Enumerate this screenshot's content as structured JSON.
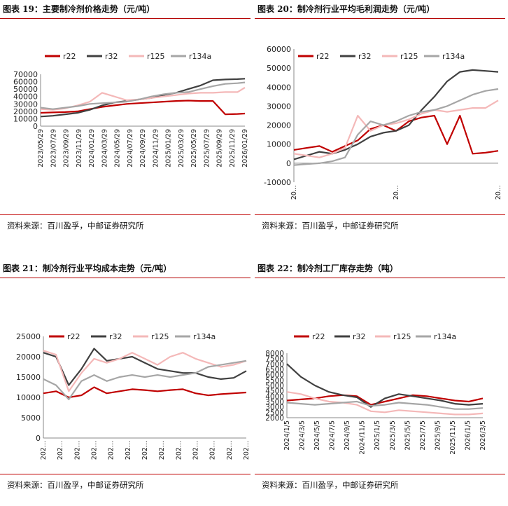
{
  "source": "资料来源：百川盈孚，中邮证券研究所",
  "colors": {
    "r22": "#c00000",
    "r32": "#404040",
    "r125": "#f4b8b8",
    "r134a": "#a6a6a6"
  },
  "chart_data": [
    {
      "title": "图表 19：主要制冷剂价格走势（元/吨）",
      "type": "line",
      "ylim": [
        0,
        70000
      ],
      "yticks": [
        "0",
        "10000",
        "20000",
        "30000",
        "40000",
        "50000",
        "60000",
        "70000"
      ],
      "xticks": [
        "2023/05/29",
        "2023/07/29",
        "2023/09/29",
        "2023/11/29",
        "2024/01/29",
        "2024/03/29",
        "2024/05/29",
        "2024/07/29",
        "2024/09/29",
        "2024/11/29",
        "2025/01/29",
        "2025/03/29",
        "2025/05/29",
        "2025/07/29",
        "2025/09/29",
        "2025/11/29",
        "2026/01/29"
      ],
      "xtick_rotate": true,
      "x": [
        0,
        1,
        2,
        3,
        4,
        5,
        6,
        7,
        8,
        9,
        10,
        11,
        12,
        13,
        14,
        15,
        16,
        16.6
      ],
      "series": [
        {
          "name": "r22",
          "values": [
            18000,
            18500,
            19000,
            20000,
            23000,
            26000,
            28000,
            30000,
            31000,
            32000,
            33000,
            34000,
            34500,
            34000,
            34000,
            16000,
            16500,
            17000
          ]
        },
        {
          "name": "r32",
          "values": [
            13000,
            14000,
            16000,
            18000,
            22000,
            28000,
            32000,
            34000,
            36000,
            38000,
            42000,
            45000,
            50000,
            55000,
            62000,
            63000,
            63500,
            64000
          ]
        },
        {
          "name": "r125",
          "values": [
            23000,
            22000,
            24000,
            28000,
            33000,
            45000,
            40000,
            35000,
            36000,
            38000,
            40000,
            42000,
            44000,
            45000,
            45000,
            46000,
            46000,
            52000
          ]
        },
        {
          "name": "r134a",
          "values": [
            25000,
            23000,
            25000,
            27000,
            30000,
            31000,
            32000,
            33000,
            36000,
            40000,
            43000,
            45000,
            46000,
            50000,
            54000,
            57000,
            58000,
            59000
          ]
        }
      ]
    },
    {
      "title": "图表 20：制冷剂行业平均毛利润走势（元/吨）",
      "type": "line",
      "ylim": [
        -10000,
        60000
      ],
      "yticks": [
        "-10000",
        "0",
        "10000",
        "20000",
        "30000",
        "40000",
        "50000",
        "60000"
      ],
      "xticks": [
        "20...",
        "20...",
        "20..."
      ],
      "xtick_rotate": true,
      "x": [
        0,
        1,
        2,
        3,
        4,
        5,
        6,
        7,
        8,
        9,
        10,
        11,
        12,
        13,
        14,
        15,
        16
      ],
      "series": [
        {
          "name": "r22",
          "values": [
            7000,
            8000,
            9000,
            6000,
            9000,
            12000,
            18000,
            20000,
            17000,
            22000,
            24000,
            25000,
            10000,
            25000,
            5000,
            5500,
            6500
          ]
        },
        {
          "name": "r32",
          "values": [
            2000,
            4000,
            6000,
            5000,
            7000,
            10000,
            14000,
            16000,
            17000,
            20000,
            28000,
            35000,
            43000,
            48000,
            49000,
            48500,
            48000
          ]
        },
        {
          "name": "r125",
          "values": [
            5000,
            4000,
            3000,
            5000,
            8000,
            25000,
            17000,
            20000,
            21000,
            23000,
            26000,
            28000,
            27000,
            28000,
            29000,
            29000,
            33000
          ]
        },
        {
          "name": "r134a",
          "values": [
            -1000,
            -500,
            0,
            1000,
            3000,
            15000,
            22000,
            20000,
            22000,
            25000,
            27000,
            28000,
            30000,
            33000,
            36000,
            38000,
            39000
          ]
        }
      ]
    },
    {
      "title": "图表 21：制冷剂行业平均成本走势（元/吨）",
      "type": "line",
      "ylim": [
        0,
        25000
      ],
      "yticks": [
        "0",
        "5000",
        "10000",
        "15000",
        "20000",
        "25000"
      ],
      "xticks": [
        "202...",
        "202...",
        "202...",
        "202...",
        "202...",
        "202...",
        "202...",
        "202...",
        "202...",
        "202...",
        "202...",
        "202...",
        "202..."
      ],
      "xtick_rotate": true,
      "x": [
        0,
        1,
        2,
        3,
        4,
        5,
        6,
        7,
        8,
        9,
        10,
        11,
        12,
        13,
        14,
        15,
        16
      ],
      "series": [
        {
          "name": "r22",
          "values": [
            11000,
            11500,
            10000,
            10500,
            12500,
            11000,
            11500,
            12000,
            11800,
            11500,
            11800,
            12000,
            11000,
            10500,
            10800,
            11000,
            11200
          ]
        },
        {
          "name": "r32",
          "values": [
            21000,
            20000,
            13000,
            17000,
            22000,
            19000,
            19500,
            20000,
            18500,
            17000,
            16500,
            16000,
            16000,
            15000,
            14500,
            14800,
            16500
          ]
        },
        {
          "name": "r125",
          "values": [
            21500,
            20500,
            11500,
            16000,
            19500,
            18500,
            19500,
            21000,
            19500,
            18000,
            20000,
            21000,
            19500,
            18500,
            17500,
            18000,
            19000
          ]
        },
        {
          "name": "r134a",
          "values": [
            14500,
            13000,
            9500,
            14000,
            15500,
            14000,
            15000,
            15500,
            15000,
            15500,
            15000,
            15500,
            16000,
            17500,
            18000,
            18500,
            19000
          ]
        }
      ]
    },
    {
      "title": "图表 22：制冷剂工厂库存走势（吨）",
      "type": "line",
      "ylim": [
        2000,
        8000
      ],
      "yticks": [
        "2000",
        "2500",
        "3000",
        "3500",
        "4000",
        "4500",
        "5000",
        "5500",
        "6000",
        "6500",
        "7000",
        "7500",
        "8000"
      ],
      "xticks": [
        "2024/1/5",
        "2024/3/5",
        "2024/5/5",
        "2024/7/5",
        "2024/9/5",
        "2024/11/5",
        "2025/1/5",
        "2025/3/5",
        "2025/5/5",
        "2025/7/5",
        "2025/9/5",
        "2025/11/5",
        "2026/1/5",
        "2026/3/5"
      ],
      "xtick_rotate": true,
      "x": [
        0,
        1,
        2,
        3,
        4,
        5,
        6,
        7,
        8,
        9,
        10,
        11,
        12,
        13,
        14
      ],
      "series": [
        {
          "name": "r22",
          "values": [
            3600,
            3700,
            3800,
            4000,
            4100,
            4000,
            3200,
            3500,
            3800,
            4100,
            4000,
            3800,
            3600,
            3500,
            3800
          ]
        },
        {
          "name": "r32",
          "values": [
            7000,
            5800,
            5000,
            4400,
            4100,
            3900,
            3000,
            3800,
            4200,
            4000,
            3800,
            3600,
            3300,
            3200,
            3300
          ]
        },
        {
          "name": "r125",
          "values": [
            4400,
            4200,
            3800,
            3500,
            3400,
            3200,
            2600,
            2500,
            2700,
            2600,
            2500,
            2400,
            2300,
            2300,
            2400
          ]
        },
        {
          "name": "r134a",
          "values": [
            3400,
            3300,
            3200,
            3300,
            3400,
            3500,
            3100,
            3200,
            3400,
            3300,
            3200,
            3000,
            2800,
            2800,
            2900
          ]
        }
      ]
    }
  ]
}
